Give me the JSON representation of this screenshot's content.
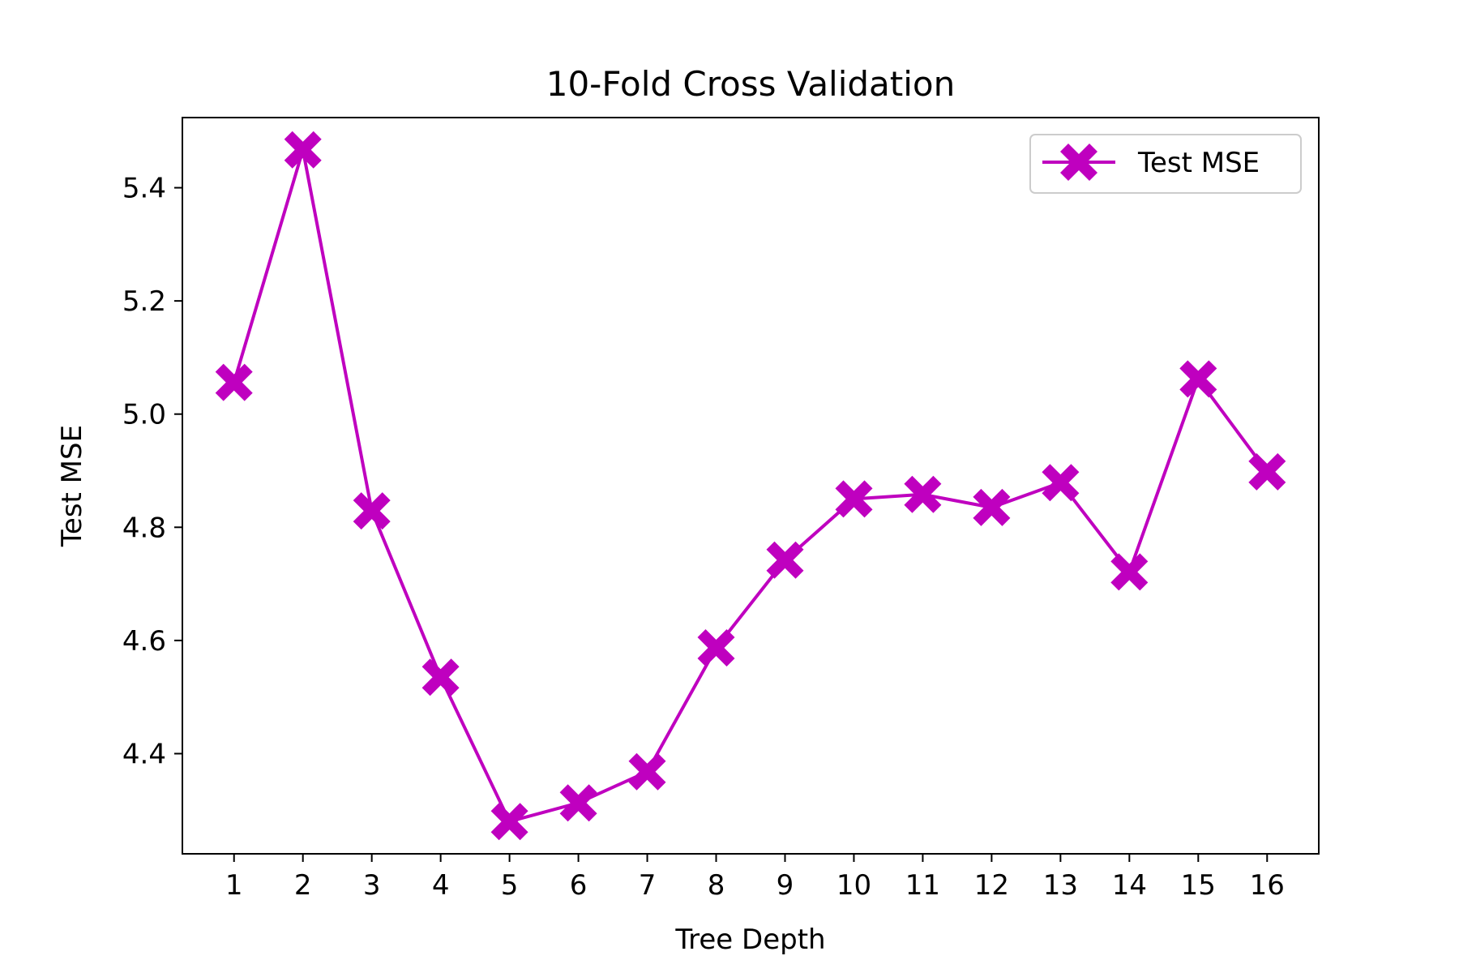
{
  "chart_data": {
    "type": "line",
    "title": "10-Fold Cross Validation",
    "xlabel": "Tree Depth",
    "ylabel": "Test MSE",
    "x": [
      1,
      2,
      3,
      4,
      5,
      6,
      7,
      8,
      9,
      10,
      11,
      12,
      13,
      14,
      15,
      16
    ],
    "x_tick_labels": [
      "1",
      "2",
      "3",
      "4",
      "5",
      "6",
      "7",
      "8",
      "9",
      "10",
      "11",
      "12",
      "13",
      "14",
      "15",
      "16"
    ],
    "y_ticks": [
      4.4,
      4.6,
      4.8,
      5.0,
      5.2,
      5.4
    ],
    "y_tick_labels": [
      "4.4",
      "4.6",
      "4.8",
      "5.0",
      "5.2",
      "5.4"
    ],
    "xlim": [
      0.25,
      16.75
    ],
    "ylim": [
      4.223,
      5.524
    ],
    "series": [
      {
        "name": "Test MSE",
        "color": "#bf00bf",
        "marker": "X",
        "values": [
          5.056,
          5.467,
          4.829,
          4.535,
          4.28,
          4.313,
          4.368,
          4.587,
          4.742,
          4.85,
          4.858,
          4.835,
          4.879,
          4.721,
          5.062,
          4.898
        ]
      }
    ],
    "legend": {
      "location": "top-right",
      "entries": [
        "Test MSE"
      ]
    },
    "grid": false
  }
}
